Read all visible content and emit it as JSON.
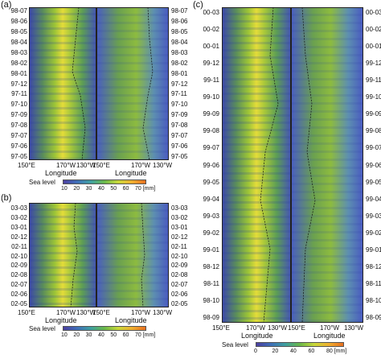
{
  "panel_a": {
    "label": "(a)",
    "left_dates": [
      "98-07",
      "98-06",
      "98-05",
      "98-04",
      "98-03",
      "98-02",
      "98-01",
      "97-12",
      "97-11",
      "97-10",
      "97-09",
      "97-08",
      "97-07",
      "97-06",
      "97-05"
    ],
    "right_dates": [
      "98-07",
      "98-06",
      "98-05",
      "98-04",
      "98-03",
      "98-02",
      "98-01",
      "97-12",
      "97-11",
      "97-10",
      "97-09",
      "97-08",
      "97-07",
      "97-06",
      "97-05"
    ],
    "x_ticks": [
      "150°E",
      "170°W",
      "130°W",
      "150°E",
      "170°W",
      "130°W"
    ],
    "xlabel_left": "Longitude",
    "xlabel_right": "Longitude",
    "sea_level_label": "Sea level",
    "cbar_ticks": [
      "10",
      "20",
      "30",
      "40",
      "50",
      "60",
      "70 [mm]"
    ]
  },
  "panel_b": {
    "label": "(b)",
    "left_dates": [
      "03-03",
      "03-02",
      "03-01",
      "02-12",
      "02-11",
      "02-10",
      "02-09",
      "02-08",
      "02-07",
      "02-06",
      "02-05"
    ],
    "right_dates": [
      "03-03",
      "03-02",
      "03-01",
      "02-12",
      "02-11",
      "02-10",
      "02-09",
      "02-08",
      "02-07",
      "02-06",
      "02-05"
    ],
    "x_ticks": [
      "150°E",
      "170°W",
      "130°W",
      "150°E",
      "170°W",
      "130°W"
    ],
    "xlabel_left": "Longitude",
    "xlabel_right": "Longitude",
    "sea_level_label": "Sea level",
    "cbar_ticks": [
      "10",
      "20",
      "30",
      "40",
      "50",
      "60",
      "70 [mm]"
    ]
  },
  "panel_c": {
    "label": "(c)",
    "left_dates": [
      "00-03",
      "00-02",
      "00-01",
      "99-12",
      "99-11",
      "99-10",
      "99-09",
      "99-08",
      "99-07",
      "99-06",
      "99-05",
      "99-04",
      "99-03",
      "99-02",
      "99-01",
      "98-12",
      "98-11",
      "98-10",
      "98-09"
    ],
    "right_dates": [
      "00-03",
      "00-02",
      "00-01",
      "99-12",
      "99-11",
      "99-10",
      "99-09",
      "99-08",
      "99-07",
      "99-06",
      "99-05",
      "99-04",
      "99-03",
      "99-02",
      "99-01",
      "98-12",
      "98-11",
      "98-10",
      "98-09"
    ],
    "x_ticks": [
      "150°E",
      "170°W",
      "130°W",
      "150°E",
      "170°W",
      "130°W"
    ],
    "xlabel_left": "Longitude",
    "xlabel_right": "Longitude",
    "sea_level_label": "Sea level",
    "cbar_ticks": [
      "0",
      "20",
      "40",
      "60",
      "80 [mm]"
    ]
  }
}
